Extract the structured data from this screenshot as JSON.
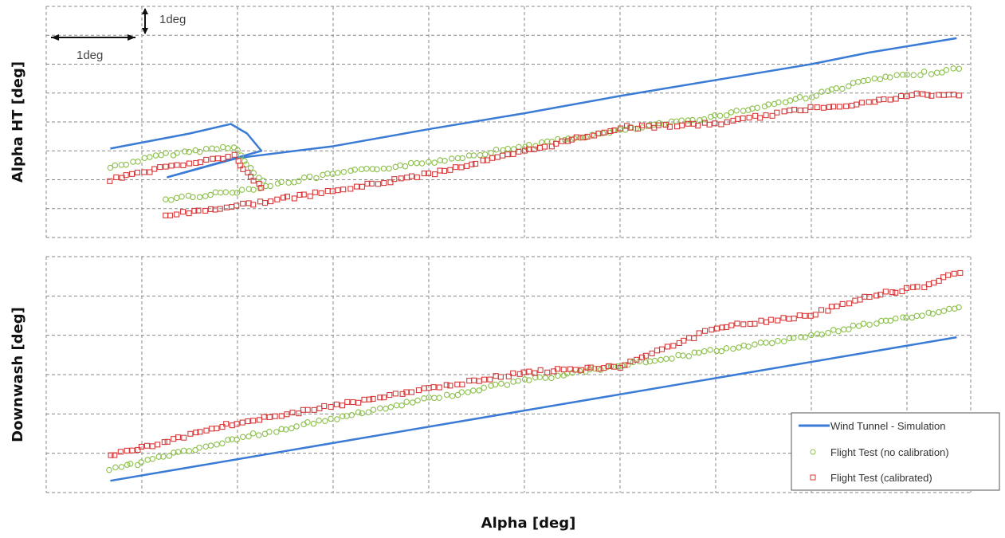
{
  "chart_data": [
    {
      "type": "scatter",
      "panel": "top",
      "ylabel": "Alpha HT [deg]",
      "xlabel": "Alpha [deg]",
      "xlim": [
        0,
        9.67
      ],
      "ylim": [
        0,
        8
      ],
      "grid": true,
      "scale_annotations": {
        "x": "1deg",
        "y": "1deg"
      },
      "series": [
        {
          "name": "Wind Tunnel - Simulation",
          "kind": "line",
          "color": "#3a7bd5",
          "x": [
            0.67,
            1.5,
            1.93,
            2.1,
            2.25,
            1.27,
            2.0,
            3.0,
            4.0,
            5.0,
            6.0,
            7.0,
            8.0,
            8.6,
            9.52
          ],
          "y": [
            3.08,
            3.6,
            3.93,
            3.6,
            3.0,
            2.09,
            2.75,
            3.16,
            3.75,
            4.3,
            4.9,
            5.45,
            6.0,
            6.4,
            6.9
          ]
        },
        {
          "name": "Flight Test (no calibration)",
          "kind": "circle",
          "color": "#8cc04a",
          "segments": [
            {
              "x": [
                0.67,
                1.2,
                1.97,
                2.1,
                2.3
              ],
              "y": [
                2.42,
                2.85,
                3.16,
                2.5,
                1.81
              ]
            },
            {
              "x": [
                1.25,
                2.0,
                3.0,
                4.0,
                5.0,
                6.0,
                7.0,
                8.0,
                8.6,
                9.6
              ],
              "y": [
                1.32,
                1.6,
                2.2,
                2.6,
                3.16,
                3.7,
                4.2,
                4.9,
                5.45,
                5.85
              ]
            }
          ]
        },
        {
          "name": "Flight Test (calibrated)",
          "kind": "square",
          "color": "#d63a3a",
          "segments": [
            {
              "x": [
                0.67,
                1.2,
                1.97,
                2.1,
                2.3
              ],
              "y": [
                2.0,
                2.4,
                2.83,
                2.2,
                1.6
              ]
            },
            {
              "x": [
                1.25,
                2.0,
                3.0,
                4.0,
                5.0,
                6.0,
                7.0,
                8.0,
                8.6,
                9.1,
                9.6
              ],
              "y": [
                0.77,
                1.1,
                1.6,
                2.2,
                2.97,
                3.8,
                3.93,
                4.48,
                4.67,
                4.95,
                4.9
              ]
            }
          ]
        }
      ]
    },
    {
      "type": "scatter",
      "panel": "bottom",
      "ylabel": "Downwash [deg]",
      "xlabel": "Alpha [deg]",
      "xlim": [
        0,
        9.67
      ],
      "ylim": [
        0,
        6
      ],
      "grid": true,
      "series": [
        {
          "name": "Wind Tunnel - Simulation",
          "kind": "line",
          "color": "#3a7bd5",
          "x": [
            0.67,
            9.52
          ],
          "y": [
            0.3,
            3.95
          ]
        },
        {
          "name": "Flight Test (no calibration)",
          "kind": "circle",
          "color": "#8cc04a",
          "segments": [
            {
              "x": [
                0.67,
                2.0,
                4.0,
                5.0,
                7.0,
                8.0,
                8.67,
                9.17,
                9.6
              ],
              "y": [
                0.57,
                1.38,
                2.39,
                2.84,
                3.61,
                4.0,
                4.32,
                4.52,
                4.73
              ]
            }
          ]
        },
        {
          "name": "Flight Test (calibrated)",
          "kind": "square",
          "color": "#d63a3a",
          "segments": [
            {
              "x": [
                0.67,
                2.0,
                4.0,
                5.0,
                6.0,
                7.0,
                8.0,
                8.67,
                9.17,
                9.6
              ],
              "y": [
                0.93,
                1.78,
                2.64,
                3.06,
                3.2,
                4.18,
                4.52,
                5.03,
                5.23,
                5.68
              ]
            }
          ]
        }
      ]
    }
  ],
  "legend": {
    "placement": "bottom-right",
    "items": [
      "Wind Tunnel - Simulation",
      "Flight Test (no calibration)",
      "Flight Test (calibrated)"
    ]
  }
}
